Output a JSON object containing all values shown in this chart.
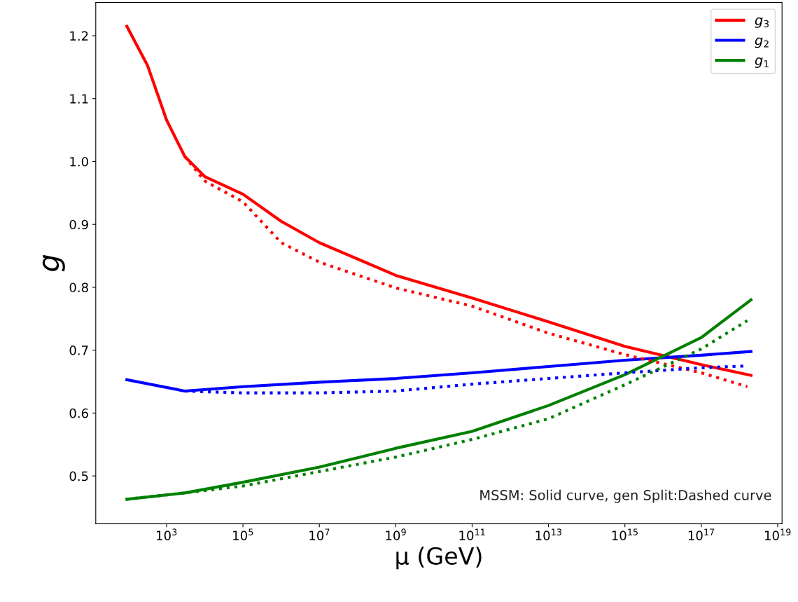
{
  "chart_data": {
    "type": "line",
    "xlabel": "μ (GeV)",
    "ylabel": "g",
    "log": "x",
    "xlim": [
      14,
      1.3e+19
    ],
    "ylim": [
      0.424,
      1.253
    ],
    "xticks": [
      {
        "value": 1000,
        "label": "10$^{3}$"
      },
      {
        "value": 100000.0,
        "label": "10$^{5}$"
      },
      {
        "value": 10000000.0,
        "label": "10$^{7}$"
      },
      {
        "value": 1000000000.0,
        "label": "10$^{9}$"
      },
      {
        "value": 100000000000.0,
        "label": "10$^{11}$"
      },
      {
        "value": 10000000000000.0,
        "label": "10$^{13}$"
      },
      {
        "value": 1000000000000000.0,
        "label": "10$^{15}$"
      },
      {
        "value": 1e+17,
        "label": "10$^{17}$"
      },
      {
        "value": 1e+19,
        "label": "10$^{19}$"
      }
    ],
    "yticks": [
      0.5,
      0.6,
      0.7,
      0.8,
      0.9,
      {
        "value": 1,
        "label": "1.0"
      },
      1.1,
      1.2
    ],
    "grid": false,
    "legend": "top right",
    "marker": "none",
    "series": [
      {
        "name": "g$_{3}$",
        "color": "#ff0000",
        "line_style": "solid",
        "x": [
          91.2,
          316,
          1000,
          3000,
          10000.0,
          100000.0,
          1000000.0,
          10000000.0,
          1000000000.0,
          100000000000.0,
          10000000000000.0,
          1000000000000000.0,
          1e+17,
          2e+18
        ],
        "values": [
          1.215,
          1.153,
          1.066,
          1.008,
          0.976,
          0.948,
          0.905,
          0.871,
          0.819,
          0.783,
          0.745,
          0.706,
          0.677,
          0.66
        ]
      },
      {
        "name": "g$_{2}$",
        "color": "#0000ff",
        "line_style": "solid",
        "x": [
          91.2,
          3000,
          100000.0,
          10000000.0,
          1000000000.0,
          100000000000.0,
          10000000000000.0,
          1000000000000000.0,
          1e+17,
          2e+18
        ],
        "values": [
          0.653,
          0.635,
          0.642,
          0.649,
          0.655,
          0.664,
          0.674,
          0.684,
          0.692,
          0.698
        ]
      },
      {
        "name": "g$_{1}$",
        "color": "#008000",
        "line_style": "solid",
        "x": [
          91.2,
          3000,
          100000.0,
          10000000.0,
          1000000000.0,
          100000000000.0,
          10000000000000.0,
          1000000000000000.0,
          1e+17,
          2e+18
        ],
        "values": [
          0.463,
          0.473,
          0.49,
          0.514,
          0.544,
          0.571,
          0.612,
          0.661,
          0.72,
          0.78
        ]
      },
      {
        "color": "#ff0000",
        "line_style": "dotted",
        "x": [
          3000,
          10000.0,
          100000.0,
          1000000.0,
          10000000.0,
          1000000000.0,
          100000000000.0,
          10000000000000.0,
          1000000000000000.0,
          1e+17,
          1.6e+18
        ],
        "values": [
          1.008,
          0.969,
          0.936,
          0.871,
          0.84,
          0.799,
          0.77,
          0.727,
          0.693,
          0.664,
          0.642
        ]
      },
      {
        "color": "#0000ff",
        "line_style": "dotted",
        "x": [
          3000,
          100000.0,
          10000000.0,
          1000000000.0,
          100000000000.0,
          10000000000000.0,
          1000000000000000.0,
          1e+17,
          1.6e+18
        ],
        "values": [
          0.635,
          0.632,
          0.632,
          0.635,
          0.646,
          0.655,
          0.664,
          0.672,
          0.675
        ]
      },
      {
        "color": "#008000",
        "line_style": "dotted",
        "x": [
          91.2,
          3000,
          100000.0,
          10000000.0,
          1000000000.0,
          100000000000.0,
          10000000000000.0,
          1000000000000000.0,
          1e+17,
          1.6e+18
        ],
        "values": [
          0.463,
          0.473,
          0.484,
          0.507,
          0.53,
          0.558,
          0.591,
          0.645,
          0.702,
          0.747
        ]
      }
    ],
    "annotations": [
      "MSSM: Solid curve, gen Split:Dashed curve"
    ]
  }
}
